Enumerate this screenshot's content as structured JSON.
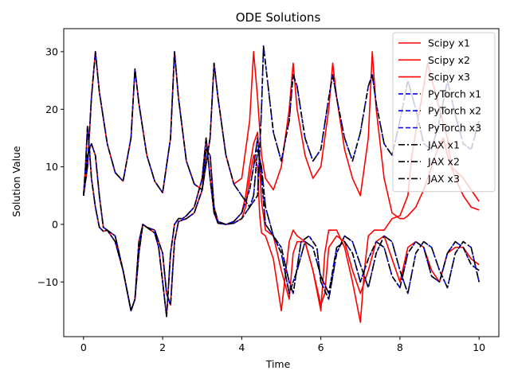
{
  "chart_data": {
    "type": "line",
    "title": "ODE Solutions",
    "xlabel": "Time",
    "ylabel": "Solution Value",
    "xlim": [
      -0.5,
      10.5
    ],
    "ylim": [
      -19.5,
      34
    ],
    "xticks": [
      0,
      2,
      4,
      6,
      8,
      10
    ],
    "yticks": [
      -10,
      0,
      10,
      20,
      30
    ],
    "grid": false,
    "legend_position": "top-right",
    "series": [
      {
        "name": "Scipy x1",
        "color": "#ff0000",
        "style": "solid",
        "x": [
          0,
          0.05,
          0.1,
          0.15,
          0.2,
          0.3,
          0.4,
          0.5,
          0.6,
          0.8,
          1.0,
          1.2,
          1.3,
          1.4,
          1.5,
          1.6,
          1.7,
          1.8,
          1.9,
          2.0,
          2.1,
          2.2,
          2.3,
          2.4,
          2.5,
          2.6,
          2.8,
          3.0,
          3.1,
          3.2,
          3.3,
          3.4,
          3.6,
          3.8,
          4.0,
          4.1,
          4.2,
          4.3,
          4.4,
          4.45,
          4.5,
          4.6,
          4.8,
          5.0,
          5.2,
          5.3,
          5.4,
          5.6,
          5.8,
          6.0,
          6.1,
          6.2,
          6.4,
          6.6,
          6.8,
          7.0,
          7.1,
          7.2,
          7.35,
          7.6,
          7.8,
          8.0,
          8.2,
          8.3,
          8.5,
          8.7,
          9.0,
          9.2,
          9.3,
          9.6,
          9.8,
          10.0
        ],
        "y": [
          5,
          10,
          17,
          13,
          8,
          3,
          -0.5,
          -1.2,
          -1,
          -3,
          -8,
          -15,
          -13,
          -5,
          0,
          -0.5,
          -1,
          -1.5,
          -4,
          -10,
          -16,
          -5,
          0,
          1,
          1,
          1.5,
          3,
          8,
          15,
          8,
          2,
          0.2,
          0,
          0.2,
          1,
          3,
          8,
          12,
          10,
          2,
          -1.5,
          -2,
          -6,
          -15,
          -3,
          -1,
          -2,
          -3,
          -8,
          -15,
          -5,
          -1,
          -1,
          -4,
          -10,
          -17,
          -8,
          -2,
          -1,
          -1,
          1,
          1.5,
          5,
          12,
          20,
          28,
          20,
          15,
          10,
          8,
          6,
          4
        ]
      },
      {
        "name": "Scipy x2",
        "color": "#ff0000",
        "style": "solid",
        "x": [
          0,
          0.1,
          0.2,
          0.3,
          0.4,
          0.5,
          0.6,
          0.8,
          1.0,
          1.2,
          1.3,
          1.4,
          1.5,
          1.6,
          1.8,
          2.0,
          2.1,
          2.2,
          2.3,
          2.4,
          2.6,
          2.8,
          3.0,
          3.1,
          3.2,
          3.3,
          3.4,
          3.6,
          3.8,
          4.0,
          4.1,
          4.2,
          4.3,
          4.4,
          4.5,
          4.6,
          4.8,
          5.0,
          5.2,
          5.3,
          5.4,
          5.6,
          5.8,
          6.0,
          6.1,
          6.2,
          6.4,
          6.6,
          6.8,
          7.0,
          7.2,
          7.4,
          7.6,
          7.8,
          8.0,
          8.2,
          8.4,
          8.6,
          8.8,
          9.0,
          9.2,
          9.4,
          9.6,
          9.8,
          10.0
        ],
        "y": [
          5,
          12,
          14,
          12,
          5,
          -0.5,
          -1,
          -2,
          -8,
          -15,
          -13,
          -3,
          0,
          -0.5,
          -1,
          -5,
          -12,
          -14,
          -3,
          0.5,
          1,
          2,
          6,
          13,
          12,
          3,
          0.5,
          0,
          0.5,
          2,
          5,
          10,
          14,
          16,
          4,
          -1,
          -2,
          -8,
          -13,
          -5,
          -3,
          -3,
          -8,
          -14,
          -12,
          -4,
          -2,
          -3,
          -8,
          -12,
          -8,
          -3,
          -2,
          -6,
          -10,
          -4,
          -3,
          -4,
          -8,
          -10,
          -5,
          -4,
          -4,
          -6,
          -7
        ]
      },
      {
        "name": "Scipy x3",
        "color": "#ff0000",
        "style": "solid",
        "x": [
          0,
          0.1,
          0.2,
          0.3,
          0.4,
          0.6,
          0.8,
          1.0,
          1.2,
          1.3,
          1.4,
          1.6,
          1.8,
          2.0,
          2.2,
          2.3,
          2.4,
          2.6,
          2.8,
          3.0,
          3.2,
          3.3,
          3.4,
          3.6,
          3.8,
          4.0,
          4.2,
          4.3,
          4.4,
          4.5,
          4.6,
          4.8,
          5.0,
          5.2,
          5.3,
          5.4,
          5.6,
          5.8,
          6.0,
          6.2,
          6.3,
          6.4,
          6.6,
          6.8,
          7.0,
          7.2,
          7.3,
          7.4,
          7.6,
          7.8,
          8.0,
          8.1,
          8.2,
          8.4,
          8.6,
          8.8,
          9.0,
          9.1,
          9.2,
          9.4,
          9.6,
          9.8,
          10.0
        ],
        "y": [
          5,
          10,
          22,
          30,
          23,
          14,
          9,
          7.5,
          15,
          27,
          21,
          12,
          7.5,
          5.5,
          15,
          30,
          22,
          11,
          7,
          6,
          15,
          28,
          22,
          12,
          7,
          8,
          18,
          30,
          22,
          12,
          8,
          6,
          10,
          20,
          28,
          20,
          12,
          8,
          10,
          20,
          28,
          22,
          13,
          8,
          5,
          15,
          30,
          20,
          8,
          2,
          1,
          1,
          1.5,
          3,
          6,
          10,
          14,
          15,
          12,
          8,
          5,
          3,
          2.5
        ]
      },
      {
        "name": "PyTorch x1",
        "color": "#0000ff",
        "style": "dashed",
        "x": [
          0,
          0.05,
          0.1,
          0.15,
          0.2,
          0.3,
          0.4,
          0.5,
          0.6,
          0.8,
          1.0,
          1.2,
          1.3,
          1.4,
          1.5,
          1.6,
          1.7,
          1.8,
          1.9,
          2.0,
          2.1,
          2.2,
          2.3,
          2.4,
          2.5,
          2.6,
          2.8,
          3.0,
          3.1,
          3.2,
          3.3,
          3.4,
          3.6,
          3.8,
          4.0,
          4.2,
          4.3,
          4.4,
          4.5,
          4.6,
          4.8,
          5.0,
          5.2,
          5.3,
          5.5,
          5.7,
          5.9,
          6.0,
          6.2,
          6.4,
          6.6,
          6.8,
          7.0,
          7.2,
          7.4,
          7.6,
          7.8,
          8.0,
          8.2,
          8.4,
          8.6,
          8.8,
          9.0,
          9.2,
          9.4,
          9.6,
          9.8,
          10.0
        ],
        "y": [
          5,
          10,
          17,
          13,
          8,
          3,
          -0.5,
          -1.2,
          -1,
          -3,
          -8,
          -15,
          -13,
          -5,
          0,
          -0.5,
          -1,
          -1.5,
          -4,
          -10,
          -16,
          -5,
          0,
          1,
          1,
          1.5,
          3,
          8,
          15,
          8,
          2,
          0.2,
          0,
          0.2,
          1,
          3,
          5,
          13,
          10,
          3,
          -2,
          -4,
          -10,
          -12,
          -3,
          -2,
          -4,
          -10,
          -13,
          -5,
          -2,
          -3,
          -7,
          -11,
          -5,
          -2,
          -3,
          -8,
          -12,
          -5,
          -3,
          -4,
          -8,
          -11,
          -5,
          -3,
          -4,
          -10
        ]
      },
      {
        "name": "PyTorch x2",
        "color": "#0000ff",
        "style": "dashed",
        "x": [
          0,
          0.1,
          0.2,
          0.3,
          0.4,
          0.5,
          0.6,
          0.8,
          1.0,
          1.2,
          1.3,
          1.4,
          1.5,
          1.6,
          1.8,
          2.0,
          2.1,
          2.2,
          2.3,
          2.4,
          2.6,
          2.8,
          3.0,
          3.1,
          3.2,
          3.3,
          3.4,
          3.6,
          3.8,
          4.0,
          4.2,
          4.3,
          4.4,
          4.5,
          4.6,
          4.8,
          5.0,
          5.2,
          5.4,
          5.6,
          5.8,
          6.0,
          6.2,
          6.4,
          6.6,
          6.8,
          7.0,
          7.2,
          7.4,
          7.6,
          7.8,
          8.0,
          8.2,
          8.4,
          8.6,
          8.8,
          9.0,
          9.2,
          9.4,
          9.6,
          9.8,
          10.0
        ],
        "y": [
          5,
          12,
          14,
          12,
          5,
          -0.5,
          -1,
          -2,
          -8,
          -15,
          -13,
          -3,
          0,
          -0.5,
          -1,
          -5,
          -12,
          -14,
          -3,
          0.5,
          1,
          2,
          6,
          13,
          12,
          3,
          0.5,
          0,
          0.5,
          2,
          6,
          10,
          15,
          8,
          0,
          -2,
          -5,
          -12,
          -8,
          -3,
          -4,
          -9,
          -12,
          -4,
          -3,
          -5,
          -10,
          -6,
          -3,
          -4,
          -9,
          -11,
          -5,
          -3,
          -4,
          -9,
          -10,
          -5,
          -3,
          -4,
          -7,
          -8
        ]
      },
      {
        "name": "PyTorch x3",
        "color": "#0000ff",
        "style": "dashed",
        "x": [
          0,
          0.1,
          0.2,
          0.3,
          0.4,
          0.6,
          0.8,
          1.0,
          1.2,
          1.3,
          1.4,
          1.6,
          1.8,
          2.0,
          2.2,
          2.3,
          2.4,
          2.6,
          2.8,
          3.0,
          3.2,
          3.3,
          3.4,
          3.6,
          3.8,
          4.0,
          4.2,
          4.4,
          4.5,
          4.55,
          4.6,
          4.7,
          4.8,
          5.0,
          5.2,
          5.3,
          5.4,
          5.6,
          5.8,
          6.0,
          6.2,
          6.3,
          6.4,
          6.6,
          6.8,
          7.0,
          7.2,
          7.3,
          7.4,
          7.6,
          7.8,
          8.0,
          8.2,
          8.4,
          8.6,
          8.8,
          9.0,
          9.2,
          9.4,
          9.6,
          9.8,
          10.0
        ],
        "y": [
          5,
          10,
          22,
          30,
          23,
          14,
          9,
          7.5,
          15,
          27,
          21,
          12,
          7.5,
          5.5,
          15,
          30,
          22,
          11,
          7,
          6,
          15,
          28,
          22,
          12,
          7,
          5,
          3,
          5,
          20,
          31,
          28,
          22,
          16,
          11,
          18,
          26,
          24,
          15,
          11,
          13,
          22,
          26,
          22,
          15,
          11,
          16,
          24,
          26,
          21,
          14,
          12,
          18,
          25,
          20,
          14,
          13,
          18,
          25,
          19,
          14,
          13,
          18
        ]
      },
      {
        "name": "JAX x1",
        "color": "#000000",
        "style": "dashdot",
        "x": [
          0,
          0.05,
          0.1,
          0.15,
          0.2,
          0.3,
          0.4,
          0.5,
          0.6,
          0.8,
          1.0,
          1.2,
          1.3,
          1.4,
          1.5,
          1.6,
          1.7,
          1.8,
          1.9,
          2.0,
          2.1,
          2.2,
          2.3,
          2.4,
          2.5,
          2.6,
          2.8,
          3.0,
          3.1,
          3.2,
          3.3,
          3.4,
          3.6,
          3.8,
          4.0,
          4.2,
          4.3,
          4.4,
          4.5,
          4.6,
          4.8,
          5.0,
          5.2,
          5.3,
          5.5,
          5.7,
          5.9,
          6.0,
          6.2,
          6.4,
          6.6,
          6.8,
          7.0,
          7.2,
          7.4,
          7.6,
          7.8,
          8.0,
          8.2,
          8.4,
          8.6,
          8.8,
          9.0,
          9.2,
          9.4,
          9.6,
          9.8,
          10.0
        ],
        "y": [
          5,
          10,
          17,
          13,
          8,
          3,
          -0.5,
          -1.2,
          -1,
          -3,
          -8,
          -15,
          -13,
          -5,
          0,
          -0.5,
          -1,
          -1.5,
          -4,
          -10,
          -16,
          -5,
          0,
          1,
          1,
          1.5,
          3,
          8,
          15,
          8,
          2,
          0.2,
          0,
          0.2,
          1,
          3,
          5,
          13,
          10,
          3,
          -2,
          -4,
          -10,
          -12,
          -3,
          -2,
          -4,
          -10,
          -13,
          -5,
          -2,
          -3,
          -7,
          -11,
          -5,
          -2,
          -3,
          -8,
          -12,
          -5,
          -3,
          -4,
          -8,
          -11,
          -5,
          -3,
          -4,
          -10
        ]
      },
      {
        "name": "JAX x2",
        "color": "#000000",
        "style": "dashdot",
        "x": [
          0,
          0.1,
          0.2,
          0.3,
          0.4,
          0.5,
          0.6,
          0.8,
          1.0,
          1.2,
          1.3,
          1.4,
          1.5,
          1.6,
          1.8,
          2.0,
          2.1,
          2.2,
          2.3,
          2.4,
          2.6,
          2.8,
          3.0,
          3.1,
          3.2,
          3.3,
          3.4,
          3.6,
          3.8,
          4.0,
          4.2,
          4.3,
          4.4,
          4.5,
          4.6,
          4.8,
          5.0,
          5.2,
          5.4,
          5.6,
          5.8,
          6.0,
          6.2,
          6.4,
          6.6,
          6.8,
          7.0,
          7.2,
          7.4,
          7.6,
          7.8,
          8.0,
          8.2,
          8.4,
          8.6,
          8.8,
          9.0,
          9.2,
          9.4,
          9.6,
          9.8,
          10.0
        ],
        "y": [
          5,
          12,
          14,
          12,
          5,
          -0.5,
          -1,
          -2,
          -8,
          -15,
          -13,
          -3,
          0,
          -0.5,
          -1,
          -5,
          -12,
          -14,
          -3,
          0.5,
          1,
          2,
          6,
          13,
          12,
          3,
          0.5,
          0,
          0.5,
          2,
          6,
          10,
          15,
          8,
          0,
          -2,
          -5,
          -12,
          -8,
          -3,
          -4,
          -9,
          -12,
          -4,
          -3,
          -5,
          -10,
          -6,
          -3,
          -4,
          -9,
          -11,
          -5,
          -3,
          -4,
          -9,
          -10,
          -5,
          -3,
          -4,
          -7,
          -8
        ]
      },
      {
        "name": "JAX x3",
        "color": "#000000",
        "style": "dashdot",
        "x": [
          0,
          0.1,
          0.2,
          0.3,
          0.4,
          0.6,
          0.8,
          1.0,
          1.2,
          1.3,
          1.4,
          1.6,
          1.8,
          2.0,
          2.2,
          2.3,
          2.4,
          2.6,
          2.8,
          3.0,
          3.2,
          3.3,
          3.4,
          3.6,
          3.8,
          4.0,
          4.2,
          4.4,
          4.5,
          4.55,
          4.6,
          4.7,
          4.8,
          5.0,
          5.2,
          5.3,
          5.4,
          5.6,
          5.8,
          6.0,
          6.2,
          6.3,
          6.4,
          6.6,
          6.8,
          7.0,
          7.2,
          7.3,
          7.4,
          7.6,
          7.8,
          8.0,
          8.2,
          8.4,
          8.6,
          8.8,
          9.0,
          9.2,
          9.4,
          9.6,
          9.8,
          10.0
        ],
        "y": [
          5,
          10,
          22,
          30,
          23,
          14,
          9,
          7.5,
          15,
          27,
          21,
          12,
          7.5,
          5.5,
          15,
          30,
          22,
          11,
          7,
          6,
          15,
          28,
          22,
          12,
          7,
          5,
          3,
          5,
          20,
          31,
          28,
          22,
          16,
          11,
          18,
          26,
          24,
          15,
          11,
          13,
          22,
          26,
          22,
          15,
          11,
          16,
          24,
          26,
          21,
          14,
          12,
          18,
          25,
          20,
          14,
          13,
          18,
          25,
          19,
          14,
          13,
          18
        ]
      }
    ]
  }
}
